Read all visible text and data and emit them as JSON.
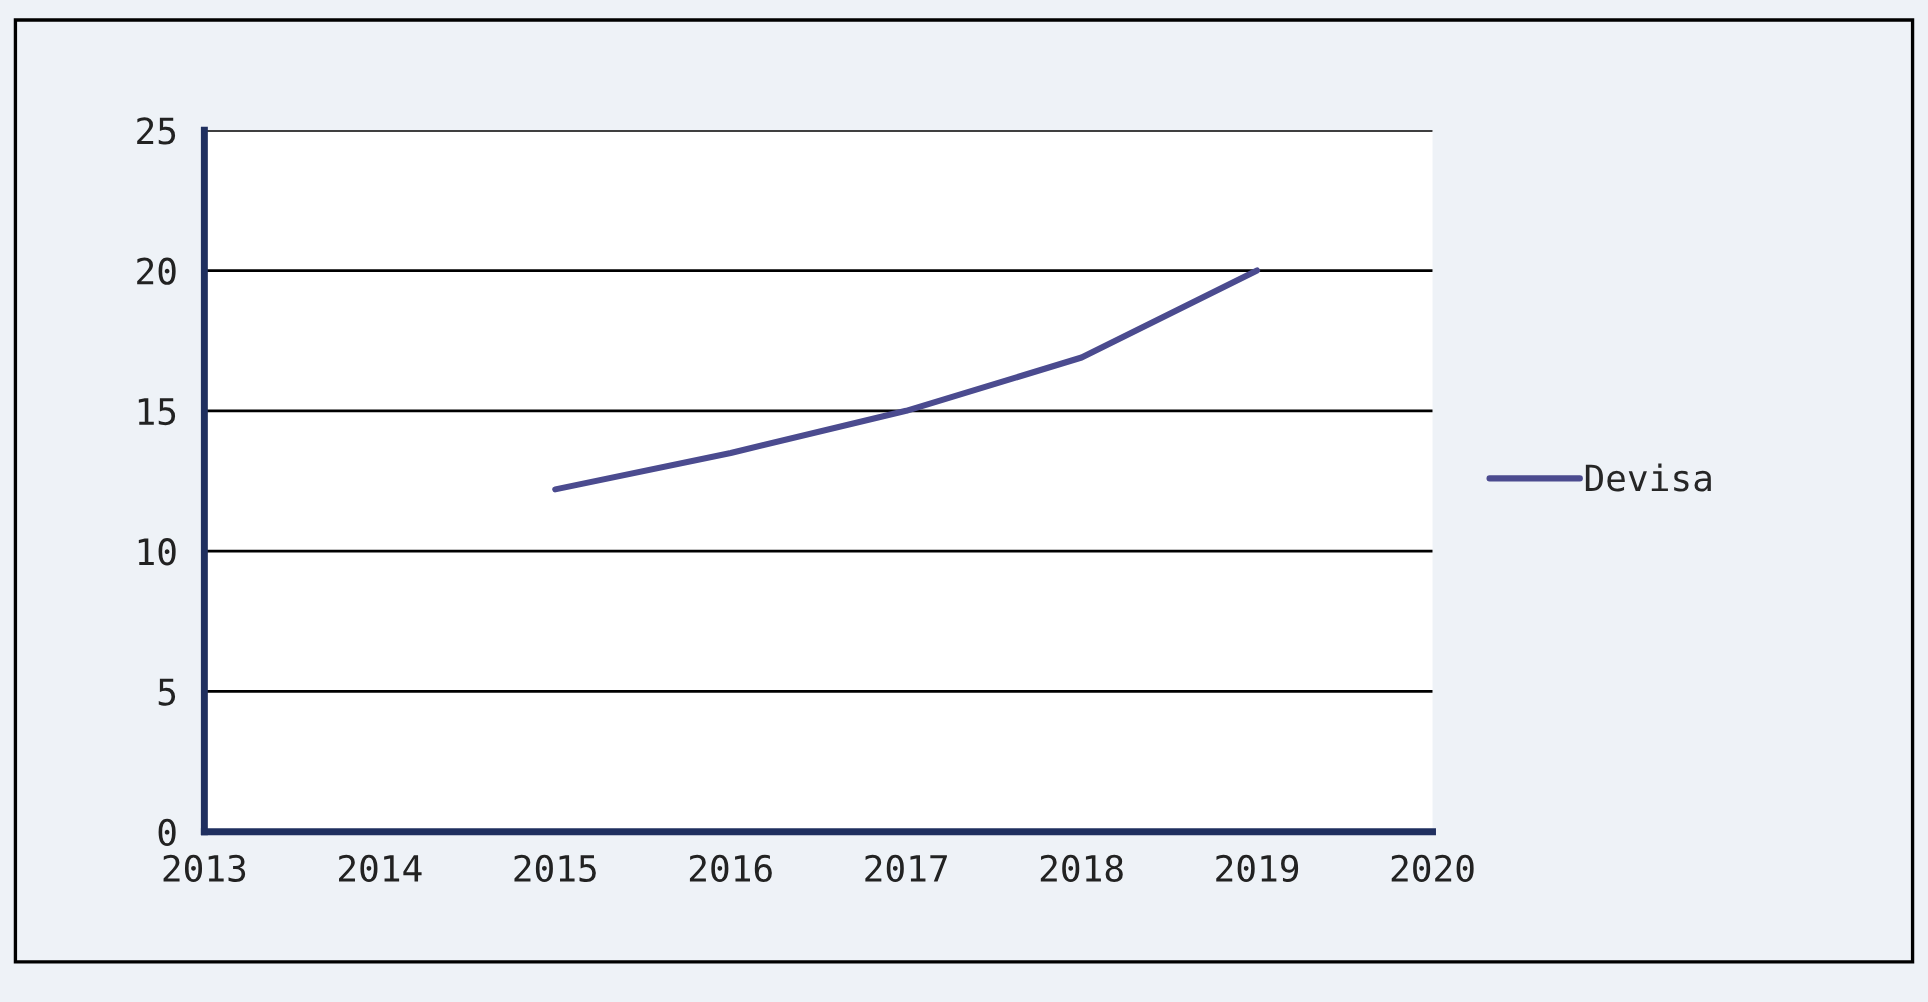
{
  "chart_data": {
    "type": "line",
    "x": [
      2015,
      2016,
      2017,
      2018,
      2019
    ],
    "series": [
      {
        "name": "Devisa",
        "color": "#4b4b8f",
        "values": [
          12.2,
          13.5,
          15.0,
          16.9,
          20.0
        ]
      }
    ],
    "xlim": [
      2013,
      2020
    ],
    "xticks": [
      2013,
      2014,
      2015,
      2016,
      2017,
      2018,
      2019,
      2020
    ],
    "ylim": [
      0,
      25
    ],
    "yticks": [
      0,
      5,
      10,
      15,
      20,
      25
    ],
    "grid": "y",
    "legend": "right",
    "marker": "none",
    "line_style": "solid"
  }
}
